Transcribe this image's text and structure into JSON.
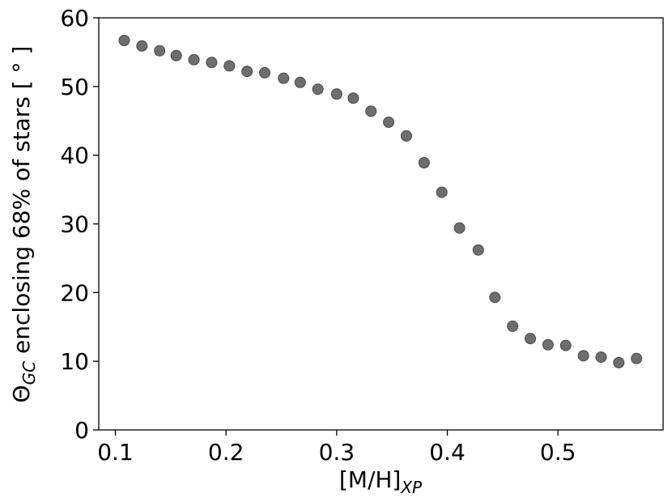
{
  "chart_data": {
    "type": "scatter",
    "xlabel_main": "[M/H]",
    "xlabel_sub": "XP",
    "ylabel_theta": "Θ",
    "ylabel_sub": "GC",
    "ylabel_rest": " enclosing 68% of stars [ ° ]",
    "xlim": [
      0.085,
      0.595
    ],
    "ylim": [
      0,
      60
    ],
    "x_ticks": [
      0.1,
      0.2,
      0.3,
      0.4,
      0.5
    ],
    "x_tick_labels": [
      "0.1",
      "0.2",
      "0.3",
      "0.4",
      "0.5"
    ],
    "y_ticks": [
      0,
      10,
      20,
      30,
      40,
      50,
      60
    ],
    "y_tick_labels": [
      "0",
      "10",
      "20",
      "30",
      "40",
      "50",
      "60"
    ],
    "grid": false,
    "marker_color": "#6e6e6e",
    "marker_edge": "#4a4a4a",
    "series": [
      {
        "points": [
          {
            "x": 0.108,
            "y": 56.7
          },
          {
            "x": 0.124,
            "y": 55.9
          },
          {
            "x": 0.14,
            "y": 55.2
          },
          {
            "x": 0.155,
            "y": 54.5
          },
          {
            "x": 0.171,
            "y": 53.9
          },
          {
            "x": 0.187,
            "y": 53.5
          },
          {
            "x": 0.203,
            "y": 53.0
          },
          {
            "x": 0.219,
            "y": 52.2
          },
          {
            "x": 0.235,
            "y": 52.0
          },
          {
            "x": 0.252,
            "y": 51.2
          },
          {
            "x": 0.267,
            "y": 50.6
          },
          {
            "x": 0.283,
            "y": 49.6
          },
          {
            "x": 0.3,
            "y": 48.9
          },
          {
            "x": 0.315,
            "y": 48.3
          },
          {
            "x": 0.331,
            "y": 46.4
          },
          {
            "x": 0.347,
            "y": 44.8
          },
          {
            "x": 0.363,
            "y": 42.8
          },
          {
            "x": 0.379,
            "y": 38.9
          },
          {
            "x": 0.395,
            "y": 34.6
          },
          {
            "x": 0.411,
            "y": 29.4
          },
          {
            "x": 0.428,
            "y": 26.2
          },
          {
            "x": 0.443,
            "y": 19.3
          },
          {
            "x": 0.459,
            "y": 15.1
          },
          {
            "x": 0.475,
            "y": 13.3
          },
          {
            "x": 0.491,
            "y": 12.4
          },
          {
            "x": 0.507,
            "y": 12.3
          },
          {
            "x": 0.523,
            "y": 10.8
          },
          {
            "x": 0.539,
            "y": 10.6
          },
          {
            "x": 0.555,
            "y": 9.8
          },
          {
            "x": 0.571,
            "y": 10.4
          }
        ]
      }
    ]
  }
}
